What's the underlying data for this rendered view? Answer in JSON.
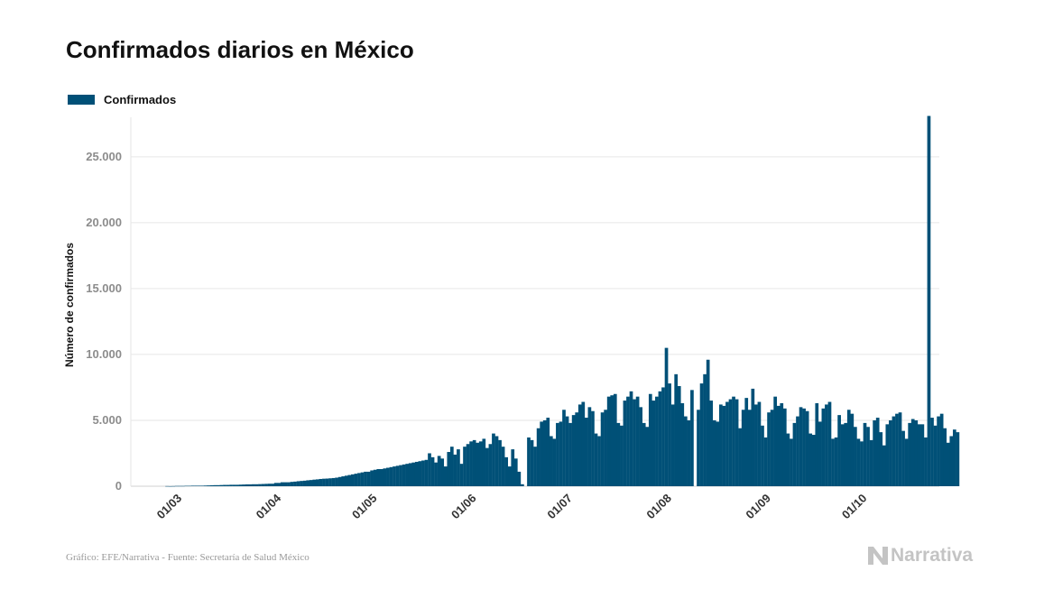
{
  "title": "Confirmados diarios en México",
  "legend": {
    "label": "Confirmados"
  },
  "footer": {
    "source": "Gráfico: EFE/Narrativa - Fuente: Secretaría de Salud México"
  },
  "brand": {
    "name": "Narrativa",
    "icon": "narrativa-n-icon"
  },
  "colors": {
    "bar": "#005077",
    "grid": "#e6e6e6",
    "tick_text": "#8c8c8c",
    "brand": "#c4c4c4"
  },
  "chart_data": {
    "type": "bar",
    "title": "Confirmados diarios en México",
    "ylabel": "Número de confirmados",
    "ylim": [
      0,
      28000
    ],
    "grid": true,
    "legend_position": "top-left",
    "yticks": [
      0,
      5000,
      10000,
      15000,
      20000,
      25000
    ],
    "ytick_labels": [
      "0",
      "5.000",
      "10.000",
      "15.000",
      "20.000",
      "25.000"
    ],
    "xtick_labels": [
      "01/03",
      "01/04",
      "01/05",
      "01/06",
      "01/07",
      "01/08",
      "01/09",
      "01/10"
    ],
    "x_start": "2020-02-28",
    "x_end": "2020-10-15",
    "series": [
      {
        "name": "Confirmados",
        "values": [
          10,
          5,
          10,
          20,
          20,
          20,
          30,
          30,
          40,
          40,
          40,
          40,
          50,
          60,
          70,
          80,
          80,
          90,
          100,
          100,
          110,
          110,
          110,
          120,
          130,
          140,
          140,
          150,
          150,
          160,
          170,
          180,
          190,
          190,
          250,
          250,
          300,
          300,
          300,
          330,
          350,
          380,
          400,
          420,
          450,
          470,
          500,
          520,
          550,
          570,
          580,
          600,
          620,
          650,
          700,
          750,
          800,
          850,
          900,
          950,
          1000,
          1050,
          1100,
          1100,
          1200,
          1250,
          1300,
          1300,
          1350,
          1400,
          1450,
          1500,
          1550,
          1600,
          1650,
          1700,
          1750,
          1800,
          1850,
          1900,
          1950,
          2000,
          2500,
          2200,
          1800,
          2300,
          2100,
          1500,
          2600,
          3000,
          2400,
          2800,
          1700,
          3000,
          3200,
          3400,
          3500,
          3300,
          3400,
          3600,
          2900,
          3200,
          4000,
          3800,
          3500,
          3000,
          2200,
          1500,
          2800,
          2100,
          1100,
          150,
          0,
          3700,
          3500,
          3000,
          4400,
          4900,
          5000,
          5200,
          3800,
          3600,
          4800,
          4900,
          5800,
          5300,
          4800,
          5400,
          5600,
          6200,
          6400,
          5200,
          6000,
          5700,
          4000,
          3800,
          5600,
          5800,
          6800,
          6900,
          7000,
          4800,
          4600,
          6500,
          6800,
          7200,
          6600,
          6800,
          6000,
          4800,
          4500,
          7000,
          6500,
          6800,
          7200,
          7500,
          10500,
          7800,
          6200,
          8500,
          7600,
          6300,
          5300,
          5000,
          7300,
          0,
          5800,
          7800,
          8500,
          9600,
          6500,
          5000,
          4900,
          6200,
          6100,
          6400,
          6600,
          6800,
          6600,
          4400,
          5800,
          6700,
          5800,
          7400,
          6200,
          6400,
          4600,
          3700,
          5600,
          5800,
          6800,
          6100,
          6300,
          5900,
          4000,
          3600,
          4800,
          5300,
          6000,
          5900,
          5700,
          4000,
          3900,
          6300,
          4900,
          5900,
          6200,
          6400,
          3600,
          3700,
          5400,
          4700,
          4800,
          5800,
          5500,
          4500,
          3600,
          3400,
          4800,
          4500,
          3500,
          5000,
          5200,
          4100,
          3100,
          4700,
          5000,
          5300,
          5500,
          5600,
          4200,
          3600,
          4800,
          5100,
          5000,
          4700,
          4700,
          3700,
          28100,
          5200,
          4600,
          5300,
          5500,
          4400,
          3300,
          3800,
          4300,
          4100
        ]
      }
    ]
  }
}
